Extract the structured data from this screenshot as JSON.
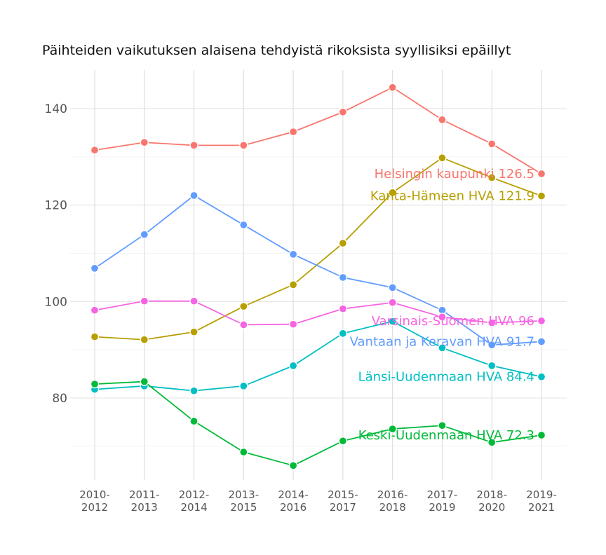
{
  "chart_data": {
    "type": "line",
    "title": "Päihteiden vaikutuksen alaisena tehdyistä rikoksista syyllisiksi epäillyt",
    "xlabel": "",
    "ylabel": "",
    "categories": [
      [
        "2010-",
        "2012"
      ],
      [
        "2011-",
        "2013"
      ],
      [
        "2012-",
        "2014"
      ],
      [
        "2013-",
        "2015"
      ],
      [
        "2014-",
        "2016"
      ],
      [
        "2015-",
        "2017"
      ],
      [
        "2016-",
        "2018"
      ],
      [
        "2017-",
        "2019"
      ],
      [
        "2018-",
        "2020"
      ],
      [
        "2019-",
        "2021"
      ]
    ],
    "ylim": [
      63,
      148
    ],
    "yticks": [
      80,
      100,
      120,
      140
    ],
    "grid": true,
    "legend": "direct end labels",
    "series": [
      {
        "name": "Helsingin kaupunki",
        "end_label": "Helsingin kaupunki 126.5",
        "color": "#F8766D",
        "values": [
          131.4,
          133.0,
          132.4,
          132.4,
          135.2,
          139.3,
          144.4,
          137.7,
          132.7,
          126.5
        ]
      },
      {
        "name": "Kanta-Hämeen HVA",
        "end_label": "Kanta-Hämeen HVA 121.9",
        "color": "#B79F00",
        "values": [
          92.7,
          92.1,
          93.7,
          99.0,
          103.5,
          112.1,
          122.6,
          129.8,
          125.7,
          121.9
        ]
      },
      {
        "name": "Vantaan ja Keravan HVA",
        "end_label": "Vantaan ja Keravan HVA 91.7",
        "color": "#619CFF",
        "values": [
          106.9,
          113.9,
          122.0,
          115.9,
          109.8,
          105.0,
          102.9,
          98.2,
          91.0,
          91.7
        ]
      },
      {
        "name": "Varsinais-Suomen HVA",
        "end_label": "Varsinais-Suomen HVA 96",
        "color": "#F564E3",
        "values": [
          98.2,
          100.1,
          100.1,
          95.2,
          95.3,
          98.5,
          99.8,
          96.8,
          95.6,
          96.0
        ]
      },
      {
        "name": "Länsi-Uudenmaan HVA",
        "end_label": "Länsi-Uudenmaan HVA 84.4",
        "color": "#00BFC4",
        "values": [
          81.8,
          82.5,
          81.5,
          82.5,
          86.7,
          93.4,
          95.9,
          90.4,
          86.7,
          84.4
        ]
      },
      {
        "name": "Keski-Uudenmaan HVA",
        "end_label": "Keski-Uudenmaan HVA 72.3",
        "color": "#00BA38",
        "values": [
          82.9,
          83.4,
          75.2,
          68.8,
          66.0,
          71.1,
          73.6,
          74.3,
          70.8,
          72.3
        ]
      }
    ]
  }
}
